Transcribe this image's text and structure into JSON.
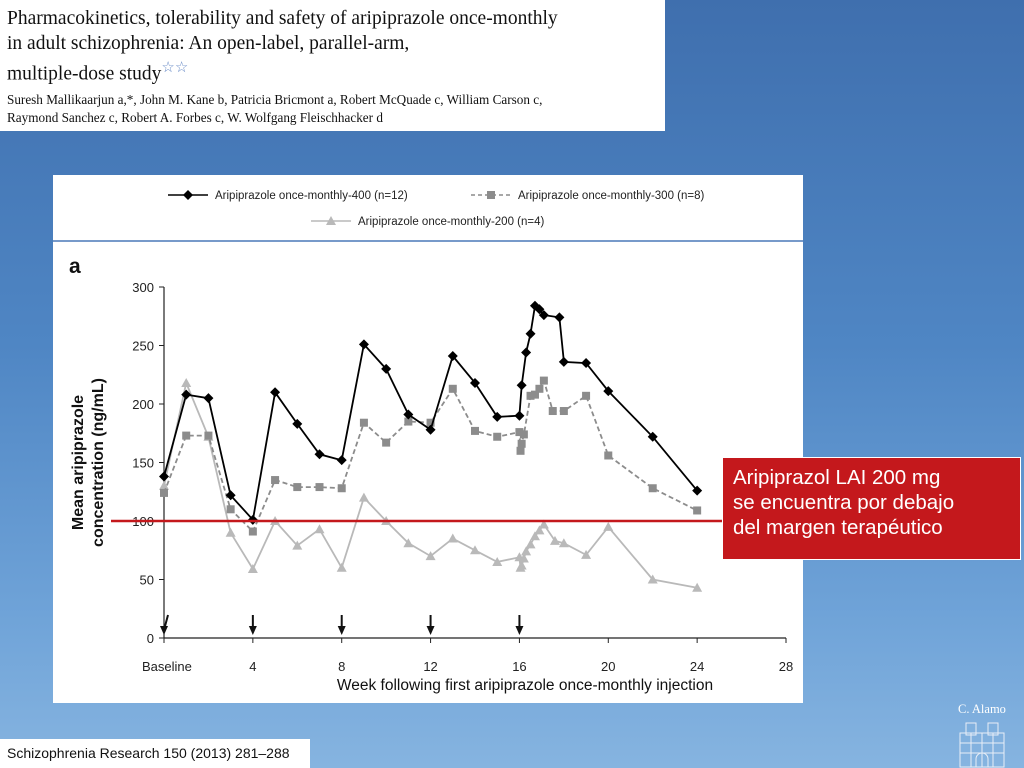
{
  "paper": {
    "title_lines": [
      "Pharmacokinetics, tolerability and safety of aripiprazole once-monthly",
      "in adult schizophrenia: An open-label, parallel-arm,",
      "multiple-dose study"
    ],
    "title_stars": "☆☆",
    "author_lines": [
      "Suresh Mallikaarjun a,*, John M. Kane b, Patricia Bricmont a, Robert McQuade c, William Carson c,",
      "Raymond Sanchez c, Robert A. Forbes c, W. Wolfgang Fleischhacker d"
    ]
  },
  "chart_data": {
    "type": "line",
    "panel_label": "a",
    "title": "",
    "xlabel": "Week following first aripiprazole once-monthly injection",
    "ylabel": "Mean aripiprazole concentration (ng/mL)",
    "ylabel_lines": [
      "Mean aripiprazole",
      "concentration (ng/mL)"
    ],
    "xlim": [
      0,
      28
    ],
    "ylim": [
      0,
      300
    ],
    "x_ticks": [
      0,
      4,
      8,
      12,
      16,
      20,
      24,
      28
    ],
    "x_tick_labels": [
      "Baseline",
      "4",
      "8",
      "12",
      "16",
      "20",
      "24",
      "28"
    ],
    "y_ticks": [
      0,
      50,
      100,
      150,
      200,
      250,
      300
    ],
    "y_tick_labels": [
      "0",
      "50",
      "100",
      "150",
      "200",
      "250",
      "300"
    ],
    "injection_weeks": [
      0,
      4,
      8,
      12,
      16
    ],
    "reference_line": {
      "y": 100,
      "color": "#c4181c"
    },
    "legend_position": "top",
    "series": [
      {
        "name": "Aripiprazole once-monthly-400 (n=12)",
        "color": "#000000",
        "marker": "diamond",
        "dash": "solid",
        "x": [
          0,
          1,
          2,
          3,
          4,
          5,
          6,
          7,
          8,
          9,
          10,
          11,
          12,
          13,
          14,
          15,
          16,
          16.1,
          16.3,
          16.5,
          16.7,
          16.9,
          17.1,
          17.8,
          18,
          19,
          20,
          22,
          24
        ],
        "y": [
          138,
          208,
          205,
          122,
          101,
          210,
          183,
          157,
          152,
          251,
          230,
          191,
          178,
          241,
          218,
          189,
          190,
          216,
          244,
          260,
          284,
          281,
          276,
          274,
          236,
          235,
          211,
          172,
          126
        ]
      },
      {
        "name": "Aripiprazole once-monthly-300 (n=8)",
        "color": "#8c8c8c",
        "marker": "square",
        "dash": "dashed",
        "x": [
          0,
          1,
          2,
          3,
          4,
          5,
          6,
          7,
          8,
          9,
          10,
          11,
          12,
          13,
          14,
          15,
          16,
          16.05,
          16.1,
          16.2,
          16.5,
          16.7,
          16.9,
          17.1,
          17.5,
          18,
          19,
          20,
          22,
          24
        ],
        "y": [
          124,
          173,
          173,
          110,
          91,
          135,
          129,
          129,
          128,
          184,
          167,
          185,
          184,
          213,
          177,
          172,
          176,
          160,
          166,
          174,
          207,
          208,
          213,
          220,
          194,
          194,
          207,
          156,
          128,
          109
        ]
      },
      {
        "name": "Aripiprazole once-monthly-200 (n=4)",
        "color": "#b9b9b9",
        "marker": "triangle",
        "dash": "solid",
        "x": [
          0,
          1,
          2,
          3,
          4,
          5,
          6,
          7,
          8,
          9,
          10,
          11,
          12,
          13,
          14,
          15,
          16,
          16.05,
          16.1,
          16.2,
          16.3,
          16.5,
          16.7,
          16.9,
          17.1,
          17.6,
          18,
          19,
          20,
          22,
          24
        ],
        "y": [
          130,
          218,
          172,
          90,
          59,
          100,
          79,
          93,
          60,
          120,
          100,
          81,
          70,
          85,
          75,
          65,
          69,
          60,
          62,
          68,
          74,
          80,
          87,
          92,
          97,
          83,
          81,
          71,
          95,
          50,
          43
        ]
      }
    ]
  },
  "callout": {
    "lines": [
      "Aripiprazol LAI 200 mg",
      "se encuentra por debajo",
      "del margen terapéutico"
    ]
  },
  "journal": {
    "reference": "Schizophrenia Research 150 (2013) 281–288"
  },
  "signature": {
    "text": "C. Alamo"
  }
}
